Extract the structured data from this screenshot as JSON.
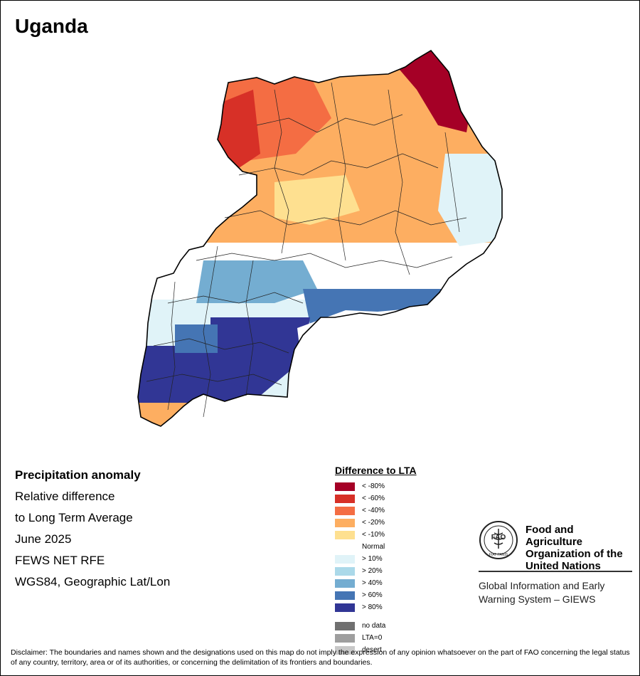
{
  "title": "Uganda",
  "info": {
    "lines": [
      "Precipitation anomaly",
      "Relative difference",
      "to Long Term Average",
      "June 2025",
      "FEWS NET RFE",
      "WGS84, Geographic Lat/Lon"
    ]
  },
  "legend": {
    "title": "Difference to LTA",
    "items": [
      {
        "label": "< -80%",
        "color": "#a50026"
      },
      {
        "label": "< -60%",
        "color": "#d73027"
      },
      {
        "label": "< -40%",
        "color": "#f46d43"
      },
      {
        "label": "< -20%",
        "color": "#fdae61"
      },
      {
        "label": "< -10%",
        "color": "#fee090"
      },
      {
        "label": "Normal",
        "color": "#ffffff"
      },
      {
        "label": "> 10%",
        "color": "#e0f3f8"
      },
      {
        "label": "> 20%",
        "color": "#abd9e9"
      },
      {
        "label": "> 40%",
        "color": "#74add1"
      },
      {
        "label": "> 60%",
        "color": "#4575b4"
      },
      {
        "label": "> 80%",
        "color": "#313695"
      }
    ],
    "extra": [
      {
        "label": "no data",
        "color": "#707070"
      },
      {
        "label": "LTA=0",
        "color": "#9e9e9e"
      },
      {
        "label": "desert",
        "color": "#c8c8c8"
      }
    ]
  },
  "fao": {
    "name_lines": [
      "Food and Agriculture",
      "Organization of the",
      "United Nations"
    ],
    "emblem_text": "FAO",
    "motto": "FIAT PANIS",
    "giews_lines": [
      "Global Information and Early",
      "Warning System – GIEWS"
    ]
  },
  "disclaimer": "Disclaimer: The boundaries and names shown and the designations used on this map do not imply the expression of any opinion whatsoever on the part of FAO concerning the legal status of any country, territory, area or of its authorities, or concerning the delimitation of its frontiers and boundaries.",
  "map_colors": {
    "outline": "#000000",
    "district_lines": "#222222",
    "lake": "#ffffff"
  }
}
